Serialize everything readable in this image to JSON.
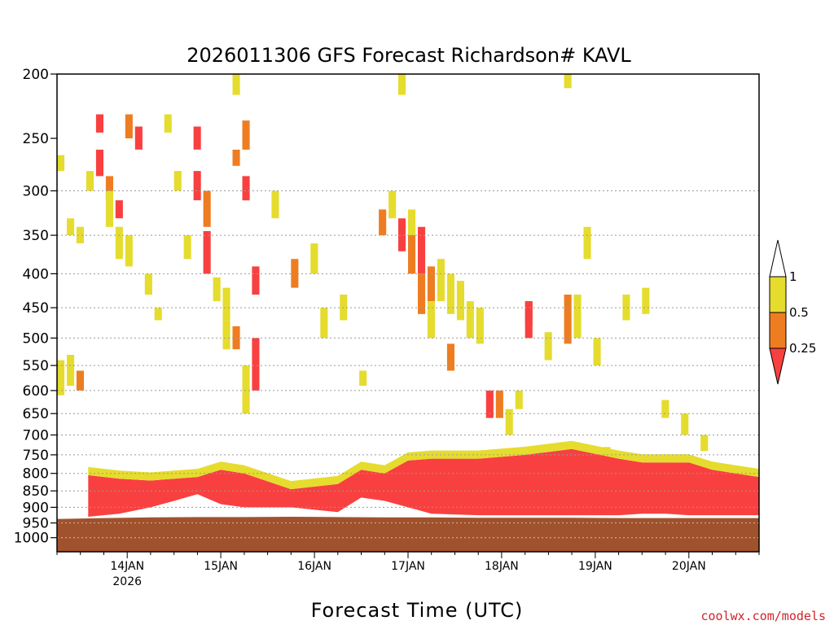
{
  "chart_data": {
    "type": "heatmap",
    "title": "2026011306 GFS Forecast Richardson# KAVL",
    "xlabel": "Forecast Time (UTC)",
    "ylabel": "",
    "credit": "coolwx.com/models",
    "y_ticks": [
      "200",
      "250",
      "300",
      "350",
      "400",
      "450",
      "500",
      "550",
      "600",
      "650",
      "700",
      "750",
      "800",
      "850",
      "900",
      "950",
      "1000"
    ],
    "y_gridlines": [
      300,
      350,
      400,
      450,
      500,
      550,
      600,
      650,
      700,
      750,
      800,
      850,
      900,
      950,
      1000
    ],
    "y_range_hPa": [
      200,
      1050
    ],
    "y_scale": "log-pressure (inverted)",
    "x_range": [
      "2026-01-13T06",
      "2026-01-20T18"
    ],
    "x_ticks": [
      {
        "label": "14JAN",
        "sub": "2026",
        "time": "2026-01-14T00"
      },
      {
        "label": "15JAN",
        "sub": "",
        "time": "2026-01-15T00"
      },
      {
        "label": "16JAN",
        "sub": "",
        "time": "2026-01-16T00"
      },
      {
        "label": "17JAN",
        "sub": "",
        "time": "2026-01-17T00"
      },
      {
        "label": "18JAN",
        "sub": "",
        "time": "2026-01-18T00"
      },
      {
        "label": "19JAN",
        "sub": "",
        "time": "2026-01-19T00"
      },
      {
        "label": "20JAN",
        "sub": "",
        "time": "2026-01-20T00"
      }
    ],
    "colorbar": {
      "ticks": [
        "1",
        "0.5",
        "0.25"
      ],
      "bins": [
        {
          "range": "0.5-1",
          "color": "#e5dc2e"
        },
        {
          "range": "0.25-0.5",
          "color": "#ee7d22"
        },
        {
          "range": "<0.25",
          "color": "#f94040"
        }
      ],
      "over_color": "#ffffff",
      "under_color": "#f94040"
    },
    "ground": {
      "color": "#a0522d",
      "surface_pressure_hPa": [
        [
          0,
          937
        ],
        [
          12,
          934
        ],
        [
          24,
          932
        ],
        [
          36,
          931
        ],
        [
          48,
          931
        ],
        [
          60,
          930
        ],
        [
          72,
          931
        ],
        [
          84,
          932
        ],
        [
          96,
          932
        ],
        [
          108,
          933
        ],
        [
          120,
          933
        ],
        [
          132,
          933
        ],
        [
          144,
          934
        ],
        [
          156,
          934
        ],
        [
          168,
          934
        ],
        [
          180,
          934
        ]
      ]
    },
    "low_level_red_layer": {
      "description_free": true,
      "top_hPa": [
        [
          8,
          805
        ],
        [
          16,
          815
        ],
        [
          24,
          820
        ],
        [
          30,
          815
        ],
        [
          36,
          810
        ],
        [
          42,
          790
        ],
        [
          48,
          800
        ],
        [
          60,
          845
        ],
        [
          72,
          830
        ],
        [
          78,
          790
        ],
        [
          84,
          800
        ],
        [
          90,
          765
        ],
        [
          96,
          760
        ],
        [
          108,
          760
        ],
        [
          120,
          750
        ],
        [
          132,
          735
        ],
        [
          144,
          760
        ],
        [
          150,
          770
        ],
        [
          156,
          770
        ],
        [
          162,
          770
        ],
        [
          168,
          790
        ],
        [
          174,
          800
        ],
        [
          180,
          810
        ]
      ],
      "bottom_hPa": [
        [
          8,
          930
        ],
        [
          16,
          920
        ],
        [
          24,
          900
        ],
        [
          30,
          880
        ],
        [
          36,
          860
        ],
        [
          42,
          890
        ],
        [
          48,
          900
        ],
        [
          60,
          900
        ],
        [
          72,
          915
        ],
        [
          78,
          870
        ],
        [
          84,
          880
        ],
        [
          90,
          900
        ],
        [
          96,
          920
        ],
        [
          108,
          925
        ],
        [
          120,
          925
        ],
        [
          132,
          925
        ],
        [
          144,
          925
        ],
        [
          150,
          920
        ],
        [
          156,
          920
        ],
        [
          162,
          925
        ],
        [
          168,
          925
        ],
        [
          174,
          925
        ],
        [
          180,
          925
        ]
      ]
    },
    "cells": [
      {
        "t": 0,
        "p": [
          265,
          280
        ],
        "v": "y"
      },
      {
        "t": 0,
        "p": [
          540,
          610
        ],
        "v": "y"
      },
      {
        "t": 1,
        "p": [
          530,
          590
        ],
        "v": "y"
      },
      {
        "t": 2,
        "p": [
          560,
          600
        ],
        "v": "o"
      },
      {
        "t": 1,
        "p": [
          330,
          350
        ],
        "v": "y"
      },
      {
        "t": 2,
        "p": [
          340,
          360
        ],
        "v": "y"
      },
      {
        "t": 3,
        "p": [
          280,
          300
        ],
        "v": "y"
      },
      {
        "t": 4,
        "p": [
          230,
          245
        ],
        "v": "r"
      },
      {
        "t": 4,
        "p": [
          260,
          285
        ],
        "v": "r"
      },
      {
        "t": 5,
        "p": [
          285,
          310
        ],
        "v": "o"
      },
      {
        "t": 5,
        "p": [
          300,
          340
        ],
        "v": "y"
      },
      {
        "t": 6,
        "p": [
          310,
          330
        ],
        "v": "r"
      },
      {
        "t": 6,
        "p": [
          340,
          380
        ],
        "v": "y"
      },
      {
        "t": 7,
        "p": [
          230,
          250
        ],
        "v": "o"
      },
      {
        "t": 7,
        "p": [
          350,
          390
        ],
        "v": "y"
      },
      {
        "t": 8,
        "p": [
          240,
          260
        ],
        "v": "r"
      },
      {
        "t": 9,
        "p": [
          400,
          430
        ],
        "v": "y"
      },
      {
        "t": 10,
        "p": [
          450,
          470
        ],
        "v": "y"
      },
      {
        "t": 11,
        "p": [
          230,
          245
        ],
        "v": "y"
      },
      {
        "t": 12,
        "p": [
          280,
          300
        ],
        "v": "y"
      },
      {
        "t": 13,
        "p": [
          350,
          380
        ],
        "v": "y"
      },
      {
        "t": 14,
        "p": [
          240,
          260
        ],
        "v": "r"
      },
      {
        "t": 14,
        "p": [
          280,
          310
        ],
        "v": "r"
      },
      {
        "t": 15,
        "p": [
          300,
          340
        ],
        "v": "o"
      },
      {
        "t": 15,
        "p": [
          345,
          400
        ],
        "v": "r"
      },
      {
        "t": 16,
        "p": [
          405,
          440
        ],
        "v": "y"
      },
      {
        "t": 17,
        "p": [
          420,
          470
        ],
        "v": "y"
      },
      {
        "t": 17,
        "p": [
          470,
          520
        ],
        "v": "y"
      },
      {
        "t": 18,
        "p": [
          200,
          215
        ],
        "v": "y"
      },
      {
        "t": 18,
        "p": [
          260,
          275
        ],
        "v": "o"
      },
      {
        "t": 18,
        "p": [
          480,
          520
        ],
        "v": "o"
      },
      {
        "t": 19,
        "p": [
          235,
          260
        ],
        "v": "o"
      },
      {
        "t": 19,
        "p": [
          285,
          310
        ],
        "v": "r"
      },
      {
        "t": 19,
        "p": [
          550,
          650
        ],
        "v": "y"
      },
      {
        "t": 20,
        "p": [
          390,
          430
        ],
        "v": "r"
      },
      {
        "t": 20,
        "p": [
          500,
          600
        ],
        "v": "r"
      },
      {
        "t": 22,
        "p": [
          300,
          330
        ],
        "v": "y"
      },
      {
        "t": 24,
        "p": [
          380,
          420
        ],
        "v": "o"
      },
      {
        "t": 26,
        "p": [
          360,
          400
        ],
        "v": "y"
      },
      {
        "t": 27,
        "p": [
          450,
          500
        ],
        "v": "y"
      },
      {
        "t": 29,
        "p": [
          430,
          470
        ],
        "v": "y"
      },
      {
        "t": 31,
        "p": [
          560,
          590
        ],
        "v": "y"
      },
      {
        "t": 33,
        "p": [
          320,
          350
        ],
        "v": "o"
      },
      {
        "t": 34,
        "p": [
          300,
          330
        ],
        "v": "y"
      },
      {
        "t": 35,
        "p": [
          200,
          215
        ],
        "v": "y"
      },
      {
        "t": 35,
        "p": [
          330,
          370
        ],
        "v": "r"
      },
      {
        "t": 36,
        "p": [
          340,
          400
        ],
        "v": "o"
      },
      {
        "t": 36,
        "p": [
          320,
          350
        ],
        "v": "y"
      },
      {
        "t": 37,
        "p": [
          340,
          400
        ],
        "v": "r"
      },
      {
        "t": 37,
        "p": [
          400,
          460
        ],
        "v": "o"
      },
      {
        "t": 38,
        "p": [
          390,
          440
        ],
        "v": "o"
      },
      {
        "t": 38,
        "p": [
          440,
          500
        ],
        "v": "y"
      },
      {
        "t": 39,
        "p": [
          380,
          440
        ],
        "v": "y"
      },
      {
        "t": 40,
        "p": [
          400,
          460
        ],
        "v": "y"
      },
      {
        "t": 40,
        "p": [
          510,
          560
        ],
        "v": "o"
      },
      {
        "t": 41,
        "p": [
          410,
          470
        ],
        "v": "y"
      },
      {
        "t": 42,
        "p": [
          440,
          500
        ],
        "v": "y"
      },
      {
        "t": 43,
        "p": [
          450,
          510
        ],
        "v": "y"
      },
      {
        "t": 44,
        "p": [
          600,
          660
        ],
        "v": "r"
      },
      {
        "t": 45,
        "p": [
          600,
          660
        ],
        "v": "o"
      },
      {
        "t": 46,
        "p": [
          640,
          700
        ],
        "v": "y"
      },
      {
        "t": 47,
        "p": [
          600,
          640
        ],
        "v": "y"
      },
      {
        "t": 48,
        "p": [
          440,
          480
        ],
        "v": "o"
      },
      {
        "t": 48,
        "p": [
          440,
          500
        ],
        "v": "r"
      },
      {
        "t": 50,
        "p": [
          490,
          540
        ],
        "v": "y"
      },
      {
        "t": 52,
        "p": [
          200,
          210
        ],
        "v": "y"
      },
      {
        "t": 52,
        "p": [
          430,
          510
        ],
        "v": "o"
      },
      {
        "t": 53,
        "p": [
          430,
          500
        ],
        "v": "y"
      },
      {
        "t": 54,
        "p": [
          340,
          380
        ],
        "v": "y"
      },
      {
        "t": 55,
        "p": [
          500,
          550
        ],
        "v": "y"
      },
      {
        "t": 56,
        "p": [
          730,
          760
        ],
        "v": "y"
      },
      {
        "t": 58,
        "p": [
          430,
          470
        ],
        "v": "y"
      },
      {
        "t": 60,
        "p": [
          420,
          460
        ],
        "v": "y"
      },
      {
        "t": 62,
        "p": [
          620,
          660
        ],
        "v": "y"
      },
      {
        "t": 64,
        "p": [
          650,
          700
        ],
        "v": "y"
      },
      {
        "t": 66,
        "p": [
          700,
          740
        ],
        "v": "y"
      }
    ]
  }
}
